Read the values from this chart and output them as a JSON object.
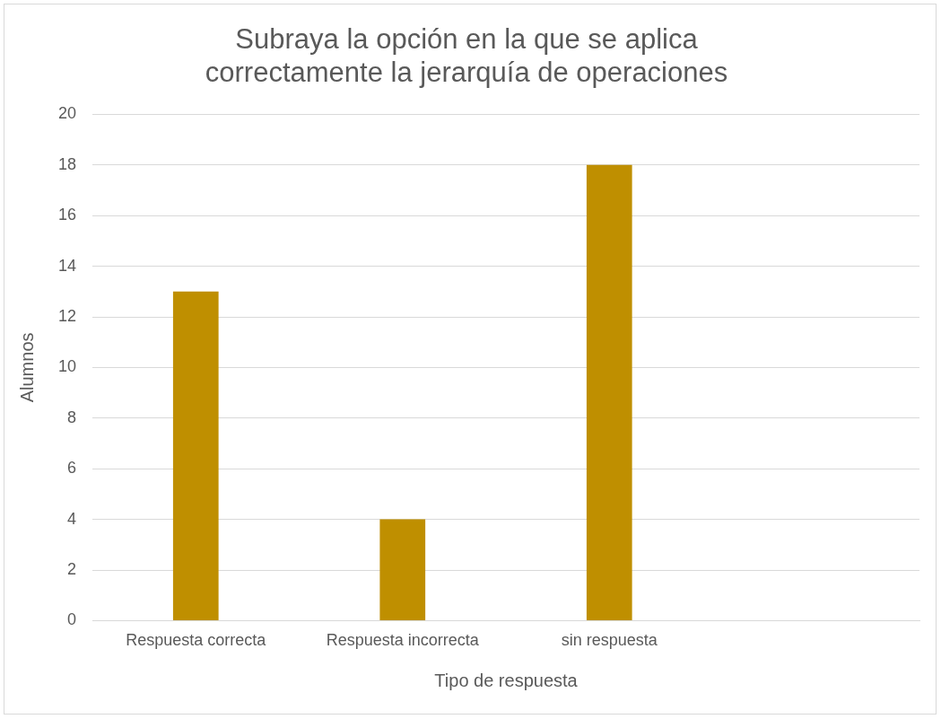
{
  "chart_data": {
    "type": "bar",
    "title": "Subraya la opción en la que se aplica correctamente la jerarquía de operaciones",
    "xlabel": "Tipo de respuesta",
    "ylabel": "Alumnos",
    "categories": [
      "Respuesta correcta",
      "Respuesta incorrecta",
      "sin respuesta",
      null
    ],
    "values": [
      13,
      4,
      18,
      null
    ],
    "color": "#bf8f00",
    "ylim": [
      0,
      20
    ],
    "yticks": [
      0,
      2,
      4,
      6,
      8,
      10,
      12,
      14,
      16,
      18,
      20
    ],
    "grid": "y",
    "legend": false
  }
}
